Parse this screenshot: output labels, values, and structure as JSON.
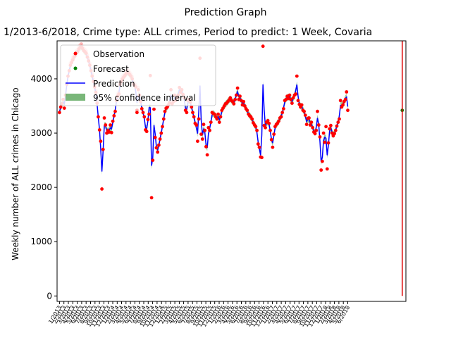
{
  "figure": {
    "title": "Prediction Graph",
    "subtitle": "1/2013-6/2018,  Crime type: ALL crimes,  Period to predict: 1 Week,  Covaria"
  },
  "chart_data": {
    "type": "line",
    "title": "Prediction Graph",
    "subtitle": "1/2013-6/2018,  Crime type: ALL crimes,  Period to predict: 1 Week,  Covaria",
    "ylabel": "Weekly number of ALL crimes in Chicago",
    "xlabel": "",
    "ylim": [
      -100,
      4700
    ],
    "yticks": [
      0,
      1000,
      2000,
      3000,
      4000
    ],
    "xlim": [
      -2,
      286
    ],
    "xticks": [
      "1/2013",
      "2/2013",
      "3/2013",
      "4/2013",
      "5/2013",
      "6/2013",
      "7/2013",
      "8/2013",
      "9/2013",
      "10/2013",
      "11/2013",
      "12/2013",
      "1/2014",
      "2/2014",
      "3/2014",
      "4/2014",
      "5/2014",
      "6/2014",
      "7/2014",
      "8/2014",
      "9/2014",
      "10/2014",
      "11/2014",
      "12/2014",
      "1/2015",
      "2/2015",
      "3/2015",
      "4/2015",
      "5/2015",
      "6/2015",
      "7/2015",
      "8/2015",
      "9/2015",
      "10/2015",
      "11/2015",
      "12/2015",
      "1/2016",
      "2/2016",
      "3/2016",
      "4/2016",
      "5/2016",
      "6/2016",
      "7/2016",
      "8/2016",
      "9/2016",
      "10/2016",
      "11/2016",
      "12/2016",
      "1/2017",
      "2/2017",
      "3/2017",
      "4/2017",
      "5/2017",
      "6/2017",
      "7/2017",
      "8/2017",
      "9/2017",
      "10/2017",
      "11/2017",
      "12/2017",
      "1/2018",
      "2/2018",
      "3/2018",
      "4/2018",
      "5/2018",
      "6/2018"
    ],
    "legend": {
      "placement": "top-left",
      "entries": [
        "Observation",
        "Forecast",
        "Prediction",
        "95% confidence interval"
      ]
    },
    "forecast_start_index": 283,
    "forecast_value": 3420,
    "vertical_marker_week": 283,
    "colors": {
      "observation": "#ff0000",
      "observation_faded": "#ffb3b3",
      "forecast": "#008000",
      "prediction": "#0000ff",
      "confidence": "#4c9e4c",
      "marker_line": "#dd0000"
    },
    "series": [
      {
        "name": "Observation",
        "values": [
          3380,
          3480,
          3540,
          3620,
          3460,
          3700,
          3900,
          4050,
          4150,
          4250,
          4300,
          4350,
          4400,
          4430,
          4480,
          4500,
          4550,
          4580,
          4600,
          4560,
          4520,
          4500,
          4470,
          4400,
          4330,
          4250,
          4150,
          4050,
          3950,
          3850,
          3750,
          3550,
          3300,
          3060,
          2850,
          1970,
          2700,
          3280,
          3150,
          3000,
          3050,
          3020,
          3150,
          3010,
          3220,
          3320,
          3400,
          3600,
          3680,
          3720,
          3900,
          3950,
          4000,
          4030,
          4060,
          4100,
          4130,
          4110,
          4080,
          4050,
          4000,
          3900,
          3880,
          3850,
          3380,
          3800,
          3700,
          3580,
          3450,
          3380,
          3300,
          3060,
          3030,
          3250,
          3350,
          4060,
          1810,
          2500,
          3440,
          2920,
          2730,
          2650,
          2780,
          2890,
          3000,
          3120,
          3260,
          3400,
          3460,
          3480,
          3520,
          3560,
          3800,
          3540,
          3580,
          3700,
          3600,
          3650,
          3700,
          3840,
          3750,
          3800,
          3710,
          3650,
          3420,
          3380,
          3600,
          3620,
          3570,
          3480,
          3380,
          3300,
          3180,
          3150,
          2850,
          3260,
          4380,
          2980,
          2890,
          3160,
          3050,
          2750,
          2600,
          3100,
          3050,
          3200,
          3380,
          3360,
          3350,
          3300,
          3260,
          3350,
          3200,
          3300,
          3420,
          3460,
          3500,
          3540,
          3550,
          3580,
          3610,
          3650,
          3600,
          3580,
          3540,
          3620,
          3700,
          3830,
          3620,
          3680,
          3600,
          3520,
          3580,
          3500,
          3450,
          3420,
          3350,
          3320,
          3300,
          3260,
          3190,
          3150,
          3120,
          3050,
          2800,
          2740,
          2560,
          2550,
          4600,
          3140,
          3100,
          3200,
          3230,
          3180,
          3050,
          2880,
          2740,
          2980,
          3120,
          3160,
          3180,
          3220,
          3280,
          3300,
          3380,
          3450,
          3600,
          3620,
          3680,
          3640,
          3700,
          3620,
          3550,
          3650,
          3700,
          3720,
          4050,
          3600,
          3530,
          3480,
          3520,
          3420,
          3400,
          3330,
          3160,
          3270,
          3280,
          3150,
          3200,
          3100,
          3020,
          2990,
          3050,
          3400,
          3150,
          2930,
          2320,
          2480,
          3000,
          2830,
          3120,
          2340,
          2820,
          3080,
          3140,
          3000,
          2950,
          2990,
          3050,
          3130,
          3200,
          3260,
          3600,
          3480,
          3520,
          3580,
          3620,
          3760,
          3420
        ],
        "note": ""
      }
    ]
  }
}
